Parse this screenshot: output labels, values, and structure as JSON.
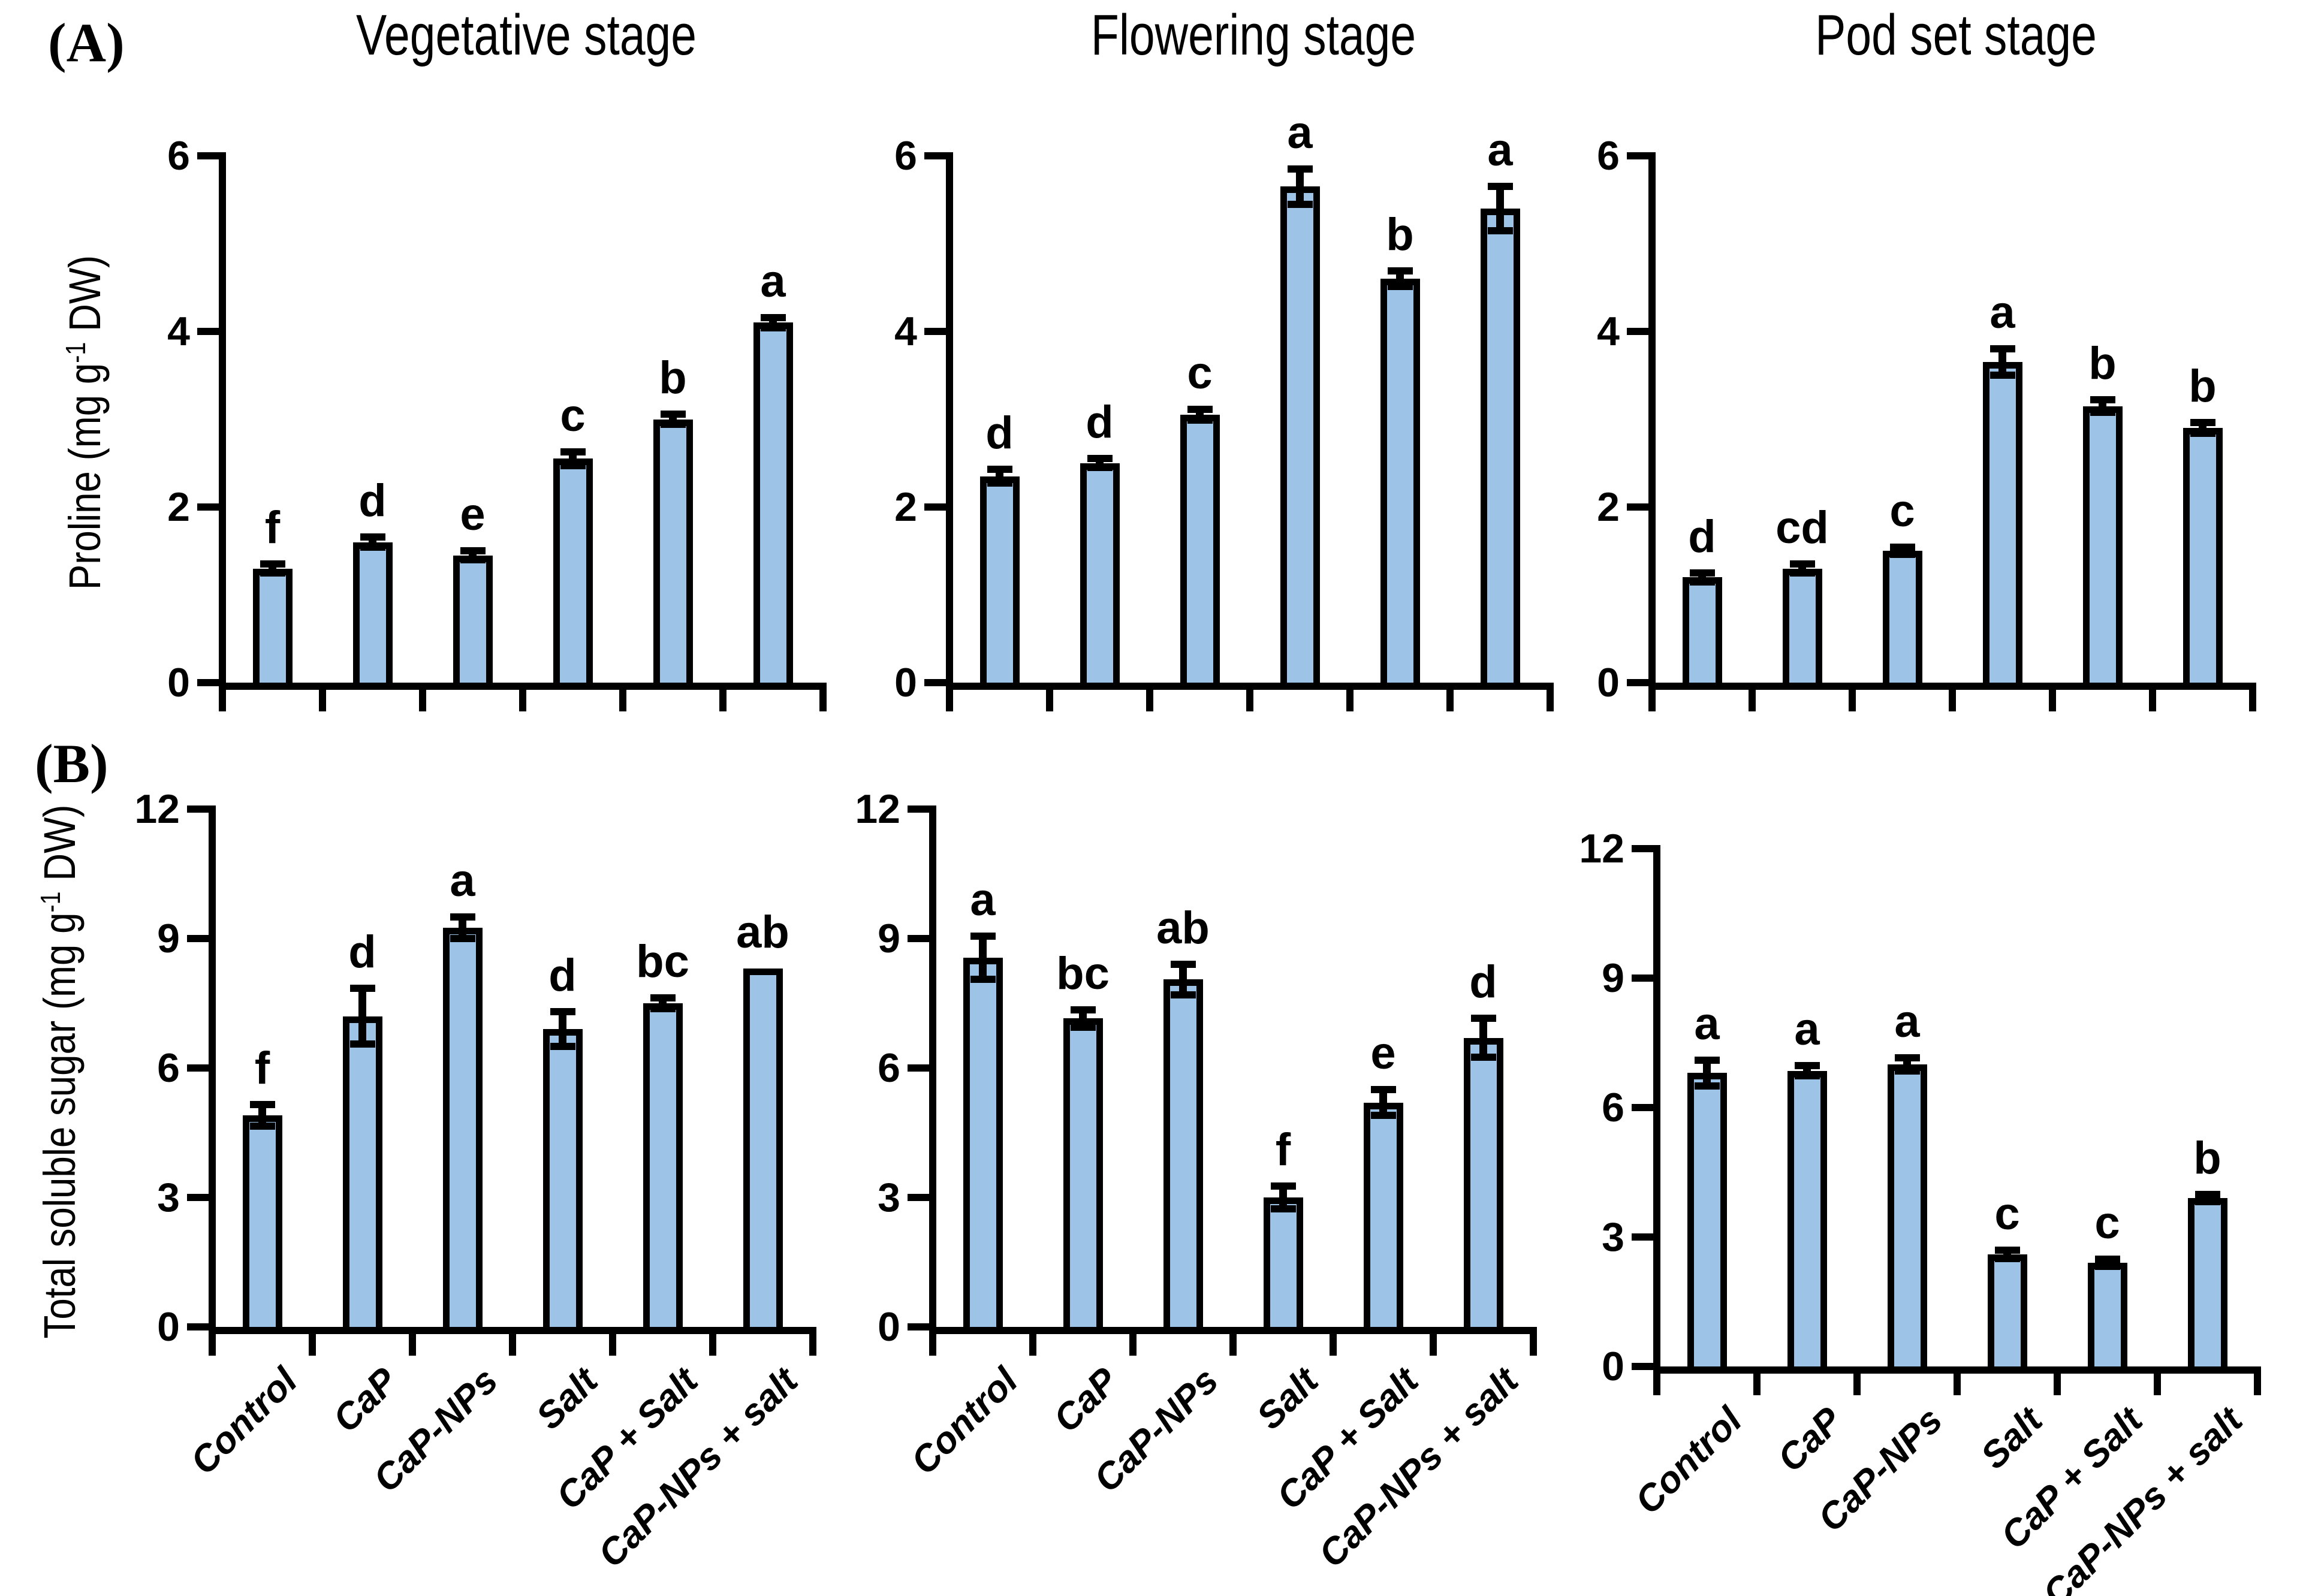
{
  "figure": {
    "panel_a_label": "(A)",
    "panel_b_label": "(B)",
    "background_color": "#FFFFFF"
  },
  "titles": [
    "Vegetative stage",
    "Flowering stage",
    "Pod set stage"
  ],
  "y_axis_labels": {
    "proline": {
      "pre": "Proline (mg g",
      "sup": "-1",
      "post": " DW)"
    },
    "sugar": {
      "pre": "Total soluble sugar (mg g",
      "sup": "-1",
      "post": " DW)"
    }
  },
  "categories": [
    "Control",
    "CaP",
    "CaP-NPs",
    "Salt",
    "CaP + Salt",
    "CaP-NPs + salt"
  ],
  "colors": {
    "bar_fill": "#9DC3E6",
    "bar_border": "#000000",
    "axis": "#000000"
  },
  "chart_data": [
    {
      "type": "bar",
      "panel": "A",
      "stage": "Vegetative stage",
      "measure": "Proline",
      "ylabel": "Proline (mg g-1 DW)",
      "ylim": [
        0,
        6
      ],
      "yticks": [
        0,
        2,
        4,
        6
      ],
      "categories": [
        "Control",
        "CaP",
        "CaP-NPs",
        "Salt",
        "CaP + Salt",
        "CaP-NPs + salt"
      ],
      "values": [
        1.3,
        1.6,
        1.45,
        2.55,
        3.0,
        4.1
      ],
      "errors": [
        0.05,
        0.06,
        0.05,
        0.08,
        0.06,
        0.06
      ],
      "letters": [
        "f",
        "d",
        "e",
        "c",
        "b",
        "a"
      ]
    },
    {
      "type": "bar",
      "panel": "A",
      "stage": "Flowering stage",
      "measure": "Proline",
      "ylabel": "Proline (mg g-1 DW)",
      "ylim": [
        0,
        6
      ],
      "yticks": [
        0,
        2,
        4,
        6
      ],
      "categories": [
        "Control",
        "CaP",
        "CaP-NPs",
        "Salt",
        "CaP + Salt",
        "CaP-NPs + salt"
      ],
      "values": [
        2.35,
        2.5,
        3.05,
        5.65,
        4.6,
        5.4
      ],
      "errors": [
        0.08,
        0.05,
        0.06,
        0.2,
        0.09,
        0.25
      ],
      "letters": [
        "d",
        "d",
        "c",
        "a",
        "b",
        "a"
      ]
    },
    {
      "type": "bar",
      "panel": "A",
      "stage": "Pod set stage",
      "measure": "Proline",
      "ylabel": "Proline (mg g-1 DW)",
      "ylim": [
        0,
        6
      ],
      "yticks": [
        0,
        2,
        4,
        6
      ],
      "categories": [
        "Control",
        "CaP",
        "CaP-NPs",
        "Salt",
        "CaP + Salt",
        "CaP-NPs + salt"
      ],
      "values": [
        1.2,
        1.3,
        1.5,
        3.65,
        3.15,
        2.9
      ],
      "errors": [
        0.05,
        0.05,
        0.04,
        0.15,
        0.07,
        0.06
      ],
      "letters": [
        "d",
        "cd",
        "c",
        "a",
        "b",
        "b"
      ]
    },
    {
      "type": "bar",
      "panel": "B",
      "stage": "Vegetative stage",
      "measure": "Total soluble sugar",
      "ylabel": "Total soluble sugar (mg g-1 DW)",
      "ylim": [
        0,
        12
      ],
      "yticks": [
        0,
        3,
        6,
        9,
        12
      ],
      "categories": [
        "Control",
        "CaP",
        "CaP-NPs",
        "Salt",
        "CaP + Salt",
        "CaP-NPs + salt"
      ],
      "values": [
        4.9,
        7.2,
        9.25,
        6.9,
        7.5,
        8.3
      ],
      "errors": [
        0.25,
        0.65,
        0.25,
        0.4,
        0.12,
        0
      ],
      "letters": [
        "f",
        "d",
        "a",
        "d",
        "bc",
        "ab"
      ]
    },
    {
      "type": "bar",
      "panel": "B",
      "stage": "Flowering stage",
      "measure": "Total soluble sugar",
      "ylabel": "Total soluble sugar (mg g-1 DW)",
      "ylim": [
        0,
        12
      ],
      "yticks": [
        0,
        3,
        6,
        9,
        12
      ],
      "categories": [
        "Control",
        "CaP",
        "CaP-NPs",
        "Salt",
        "CaP + Salt",
        "CaP-NPs + salt"
      ],
      "values": [
        8.55,
        7.15,
        8.05,
        3.0,
        5.2,
        6.7
      ],
      "errors": [
        0.5,
        0.2,
        0.35,
        0.27,
        0.3,
        0.45
      ],
      "letters": [
        "a",
        "bc",
        "ab",
        "f",
        "e",
        "d"
      ]
    },
    {
      "type": "bar",
      "panel": "B",
      "stage": "Pod set stage",
      "measure": "Total soluble sugar",
      "ylabel": "Total soluble sugar (mg g-1 DW)",
      "ylim": [
        0,
        12
      ],
      "yticks": [
        0,
        3,
        6,
        9,
        12
      ],
      "categories": [
        "Control",
        "CaP",
        "CaP-NPs",
        "Salt",
        "CaP + Salt",
        "CaP-NPs + salt"
      ],
      "values": [
        6.8,
        6.85,
        7.0,
        2.6,
        2.4,
        3.9
      ],
      "errors": [
        0.3,
        0.12,
        0.15,
        0.1,
        0.08,
        0.08
      ],
      "letters": [
        "a",
        "a",
        "a",
        "c",
        "c",
        "b"
      ]
    }
  ]
}
